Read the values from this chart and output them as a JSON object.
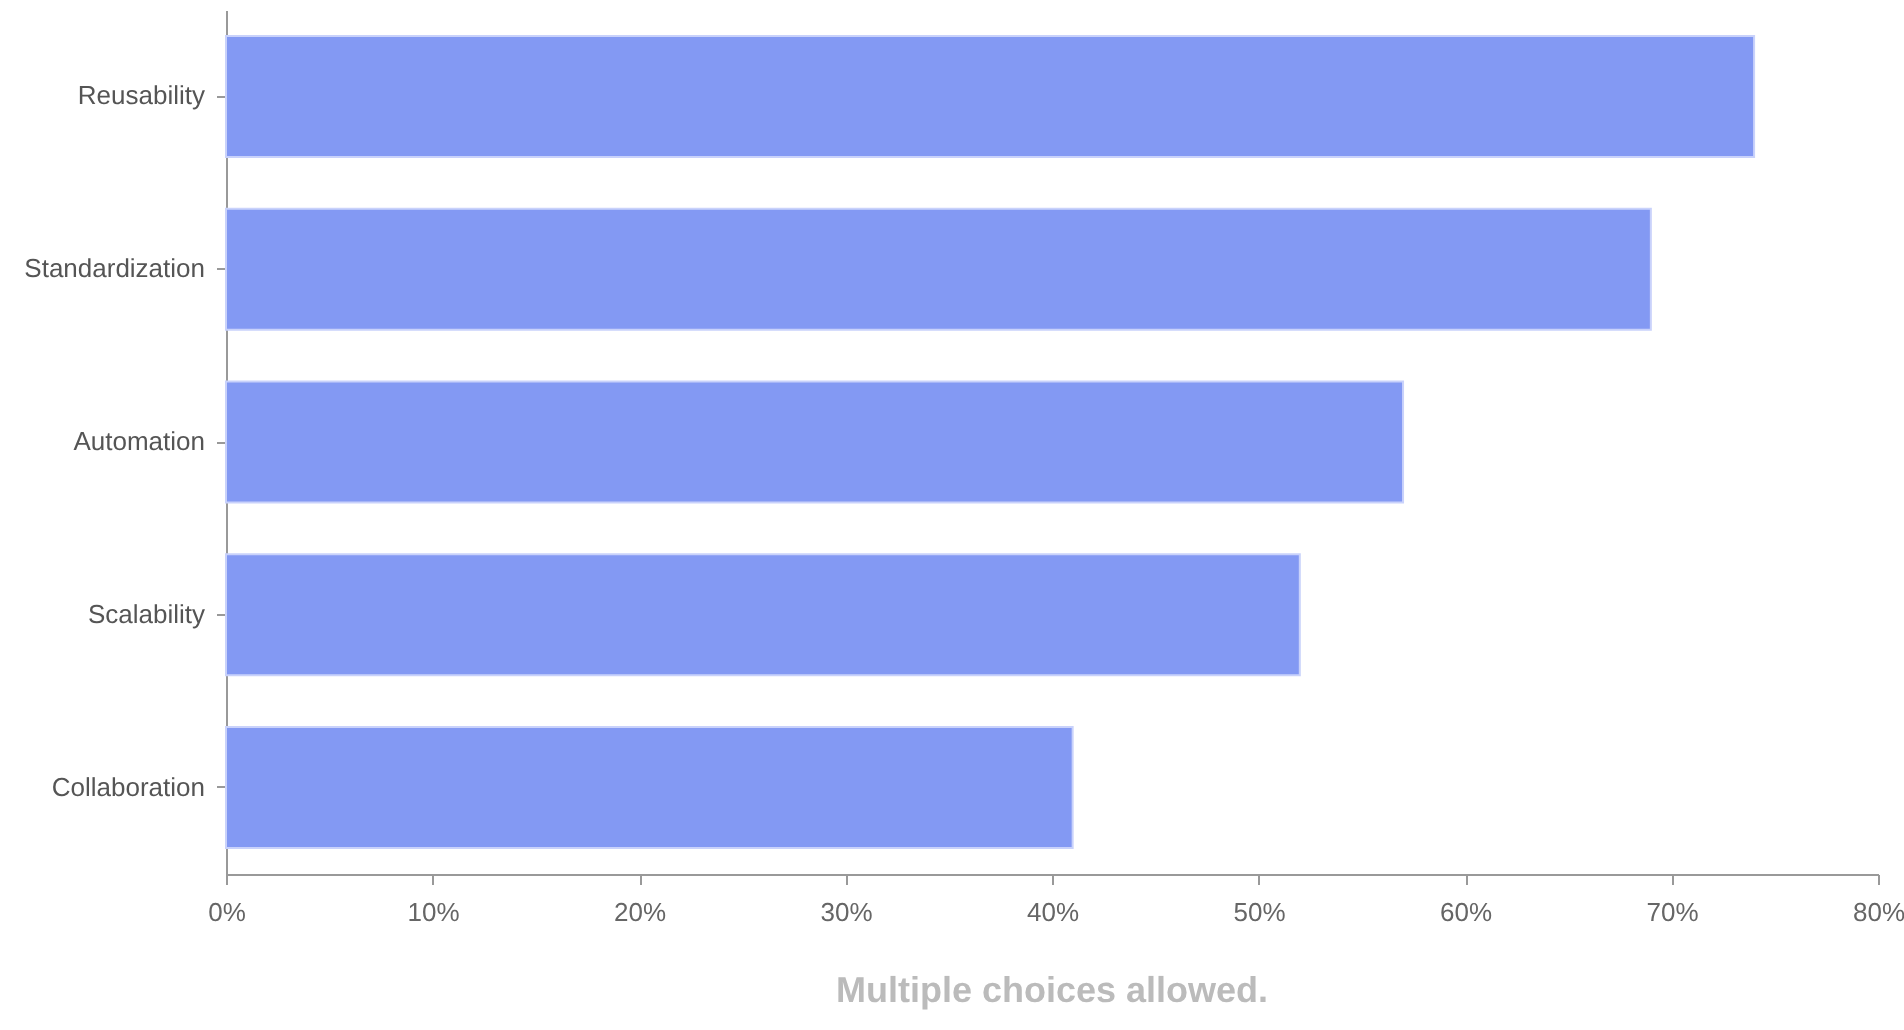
{
  "chart_data": {
    "type": "bar",
    "orientation": "horizontal",
    "categories": [
      "Reusability",
      "Standardization",
      "Automation",
      "Scalability",
      "Collaboration"
    ],
    "values": [
      74,
      69,
      57,
      52,
      41
    ],
    "color": "#8399f3",
    "xlim": [
      0,
      80
    ],
    "xticks": [
      {
        "value": 0,
        "label": "0%"
      },
      {
        "value": 10,
        "label": "10%"
      },
      {
        "value": 20,
        "label": "20%"
      },
      {
        "value": 30,
        "label": "30%"
      },
      {
        "value": 40,
        "label": "40%"
      },
      {
        "value": 50,
        "label": "50%"
      },
      {
        "value": 60,
        "label": "60%"
      },
      {
        "value": 70,
        "label": "70%"
      },
      {
        "value": 80,
        "label": "80%"
      }
    ],
    "grid": false,
    "annotations": [
      "Multiple choices allowed."
    ]
  }
}
